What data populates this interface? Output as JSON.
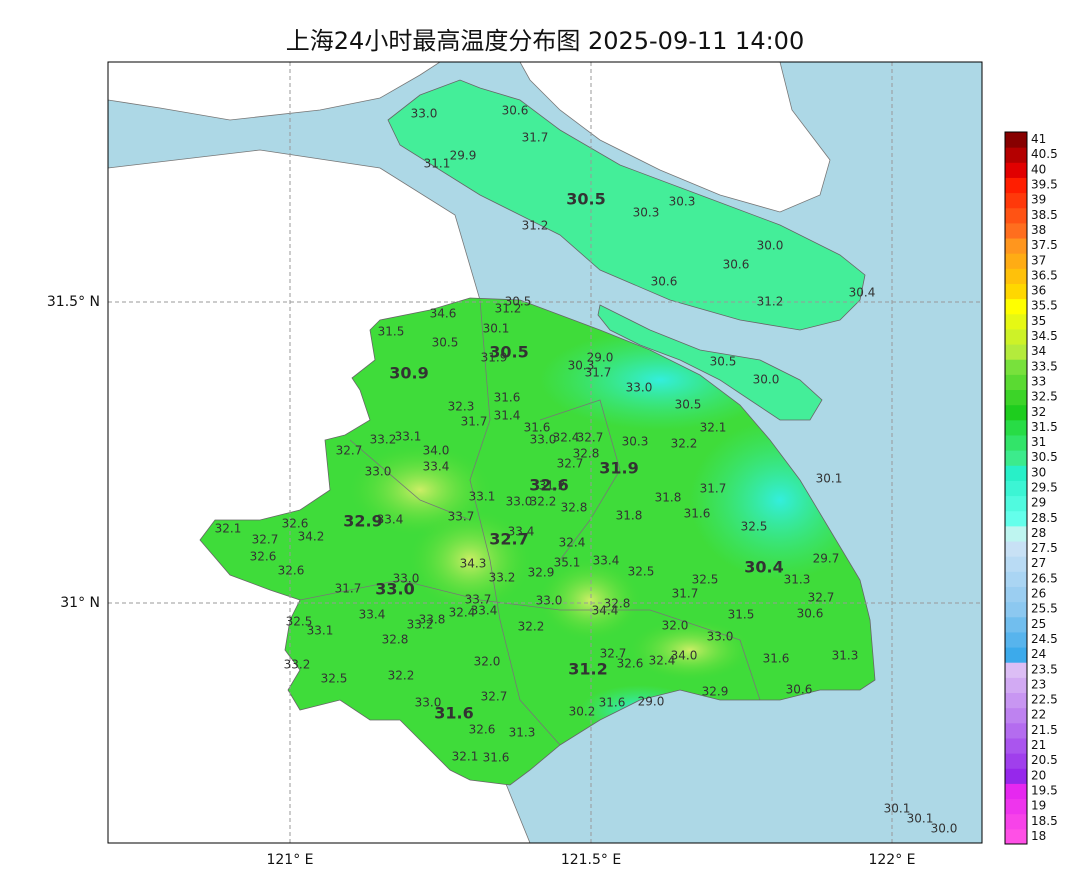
{
  "title": "上海24小时最高温度分布图 2025-09-11 14:00",
  "lon_ticks": [
    "121° E",
    "121.5° E",
    "122° E"
  ],
  "lat_ticks": [
    "31.5° N",
    "31° N"
  ],
  "colorbar": {
    "levels": [
      18,
      18.5,
      19,
      19.5,
      20,
      20.5,
      21,
      21.5,
      22,
      22.5,
      23,
      23.5,
      24,
      24.5,
      25,
      25.5,
      26,
      26.5,
      27,
      27.5,
      28,
      28.5,
      29,
      29.5,
      30,
      30.5,
      31,
      31.5,
      32,
      32.5,
      33,
      33.5,
      34,
      34.5,
      35,
      35.5,
      36,
      36.5,
      37,
      37.5,
      38,
      38.5,
      39,
      39.5,
      40,
      40.5,
      41
    ]
  },
  "stations": [
    "33.0",
    "30.6",
    "31.7",
    "29.9",
    "31.1",
    "30.3",
    "30.3",
    "31.2",
    "30.0",
    "30.6",
    "30.6",
    "31.2",
    "30.4",
    "30.5",
    "31.2",
    "34.6",
    "30.1",
    "31.5",
    "30.5",
    "31.9",
    "29.0",
    "30.3",
    "31.7",
    "30.5",
    "30.0",
    "33.0",
    "31.6",
    "30.5",
    "32.3",
    "31.4",
    "31.7",
    "31.6",
    "32.1",
    "33.1",
    "33.2",
    "33.0",
    "32.4",
    "32.7",
    "30.3",
    "32.2",
    "34.0",
    "32.7",
    "32.8",
    "32.7",
    "33.4",
    "33.0",
    "30.1",
    "31.2",
    "31.7",
    "33.1",
    "31.8",
    "33.0",
    "32.2",
    "32.8",
    "31.6",
    "31.8",
    "33.7",
    "33.4",
    "32.6",
    "32.1",
    "32.5",
    "34.2",
    "32.7",
    "33.4",
    "32.4",
    "32.6",
    "29.7",
    "33.4",
    "35.1",
    "34.3",
    "32.6",
    "32.9",
    "32.5",
    "33.2",
    "33.0",
    "32.5",
    "31.3",
    "31.7",
    "31.7",
    "32.7",
    "33.7",
    "33.0",
    "32.8",
    "34.4",
    "33.4",
    "33.4",
    "32.4",
    "33.8",
    "33.2",
    "31.5",
    "30.6",
    "32.5",
    "33.1",
    "32.2",
    "32.0",
    "33.0",
    "32.8",
    "32.7",
    "34.0",
    "32.4",
    "32.6",
    "31.6",
    "31.3",
    "33.2",
    "32.0",
    "32.2",
    "32.5",
    "32.7",
    "33.0",
    "32.9",
    "30.6",
    "31.6",
    "29.0",
    "30.2",
    "32.6",
    "31.3",
    "32.1",
    "31.6",
    "30.1",
    "30.1",
    "30.0"
  ],
  "district_labels": [
    "30.5",
    "30.9",
    "30.5",
    "31.9",
    "32.6",
    "32.9",
    "32.7",
    "30.4",
    "33.0",
    "31.2",
    "31.6"
  ]
}
